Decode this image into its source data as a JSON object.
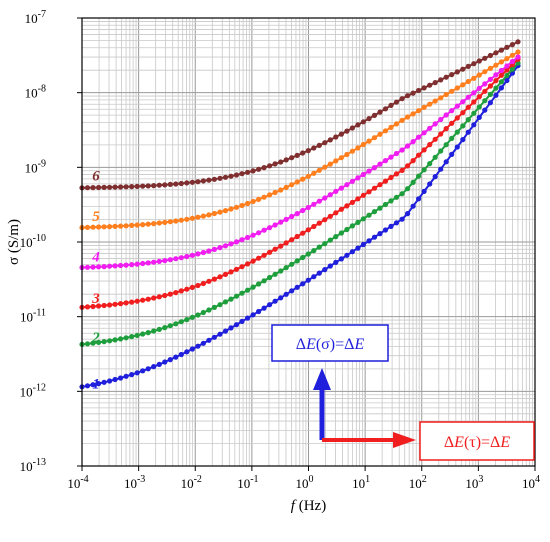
{
  "chart_data": {
    "type": "scatter",
    "xlabel": {
      "italic": "f",
      "rest": " (Hz)"
    },
    "ylabel": "σ (S/m)",
    "x_scale": "log",
    "y_scale": "log",
    "xlim": [
      0.0001,
      10000
    ],
    "ylim": [
      1e-13,
      1e-07
    ],
    "grid": true,
    "x_ticks": [
      {
        "value": 0.0001,
        "base": "10",
        "exp": "-4"
      },
      {
        "value": 0.001,
        "base": "10",
        "exp": "-3"
      },
      {
        "value": 0.01,
        "base": "10",
        "exp": "-2"
      },
      {
        "value": 0.1,
        "base": "10",
        "exp": "-1"
      },
      {
        "value": 1,
        "base": "10",
        "exp": "0"
      },
      {
        "value": 10,
        "base": "10",
        "exp": "1"
      },
      {
        "value": 100,
        "base": "10",
        "exp": "2"
      },
      {
        "value": 1000,
        "base": "10",
        "exp": "3"
      },
      {
        "value": 10000,
        "base": "10",
        "exp": "4"
      }
    ],
    "y_ticks": [
      {
        "value": 1e-13,
        "base": "10",
        "exp": "-13"
      },
      {
        "value": 1e-12,
        "base": "10",
        "exp": "-12"
      },
      {
        "value": 1e-11,
        "base": "10",
        "exp": "-11"
      },
      {
        "value": 1e-10,
        "base": "10",
        "exp": "-10"
      },
      {
        "value": 1e-09,
        "base": "10",
        "exp": "-9"
      },
      {
        "value": 1e-08,
        "base": "10",
        "exp": "-8"
      },
      {
        "value": 1e-07,
        "base": "10",
        "exp": "-7"
      }
    ],
    "series": [
      {
        "name": "1",
        "color": "#1f1fdc",
        "plateau": 8.5e-13,
        "slope": 0.5,
        "f_corner": 0.0008,
        "end": 2.3e-08
      },
      {
        "name": "2",
        "color": "#1e9e3c",
        "plateau": 3.6e-12,
        "slope": 0.5,
        "f_corner": 0.003,
        "end": 2.5e-08
      },
      {
        "name": "3",
        "color": "#f01e1e",
        "plateau": 1.2e-11,
        "slope": 0.5,
        "f_corner": 0.008,
        "end": 2.8e-08
      },
      {
        "name": "4",
        "color": "#f01ef0",
        "plateau": 4.3e-11,
        "slope": 0.5,
        "f_corner": 0.03,
        "end": 3e-08
      },
      {
        "name": "5",
        "color": "#ff7f1e",
        "plateau": 1.5e-10,
        "slope": 0.5,
        "f_corner": 0.06,
        "end": 3.5e-08
      },
      {
        "name": "6",
        "color": "#7f2f2f",
        "plateau": 5.2e-10,
        "slope": 0.5,
        "f_corner": 0.2,
        "end": 4.8e-08
      }
    ],
    "annotations": [
      {
        "id": "sigma",
        "parts": [
          {
            "t": "Δ",
            "i": false
          },
          {
            "t": "E",
            "i": true
          },
          {
            "t": "(σ)=Δ",
            "i": false
          },
          {
            "t": "E",
            "i": true
          }
        ],
        "color": "#1f1fdc",
        "arrow_color": "#1f1fdc"
      },
      {
        "id": "tau",
        "parts": [
          {
            "t": "Δ",
            "i": false
          },
          {
            "t": "E",
            "i": true
          },
          {
            "t": "(τ)=Δ",
            "i": false
          },
          {
            "t": "E",
            "i": true
          }
        ],
        "color": "#f01e1e",
        "arrow_color": "#f01e1e"
      }
    ]
  }
}
